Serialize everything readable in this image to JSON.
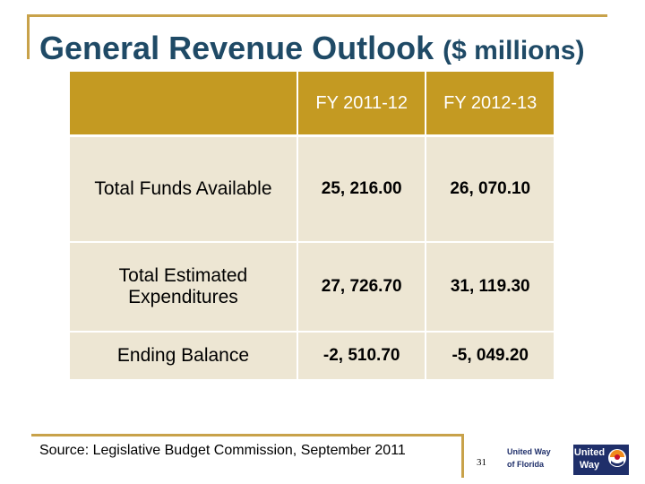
{
  "title": {
    "main": "General Revenue Outlook ",
    "suffix": "($ millions)"
  },
  "table": {
    "headers": [
      "",
      "FY 2011-12",
      "FY 2012-13"
    ],
    "rows": [
      {
        "label": "Total Funds Available",
        "values": [
          "25, 216.00",
          "26, 070.10"
        ]
      },
      {
        "label": "Total Estimated Expenditures",
        "values": [
          "27, 726.70",
          "31, 119.30"
        ]
      },
      {
        "label": "Ending Balance",
        "values": [
          "-2, 510.70",
          "-5, 049.20"
        ]
      }
    ]
  },
  "source": "Source:  Legislative Budget Commission, September 2011",
  "page_number": "31",
  "logo": {
    "org_text": "United Way of Florida",
    "badge_text": "United Way",
    "icon": "united-way-hand-icon"
  },
  "colors": {
    "accent": "#c8a24a",
    "header_fill": "#c49a22",
    "cell_fill": "#ede6d3",
    "title": "#1f4a66",
    "logo_blue": "#1f2f6a"
  }
}
